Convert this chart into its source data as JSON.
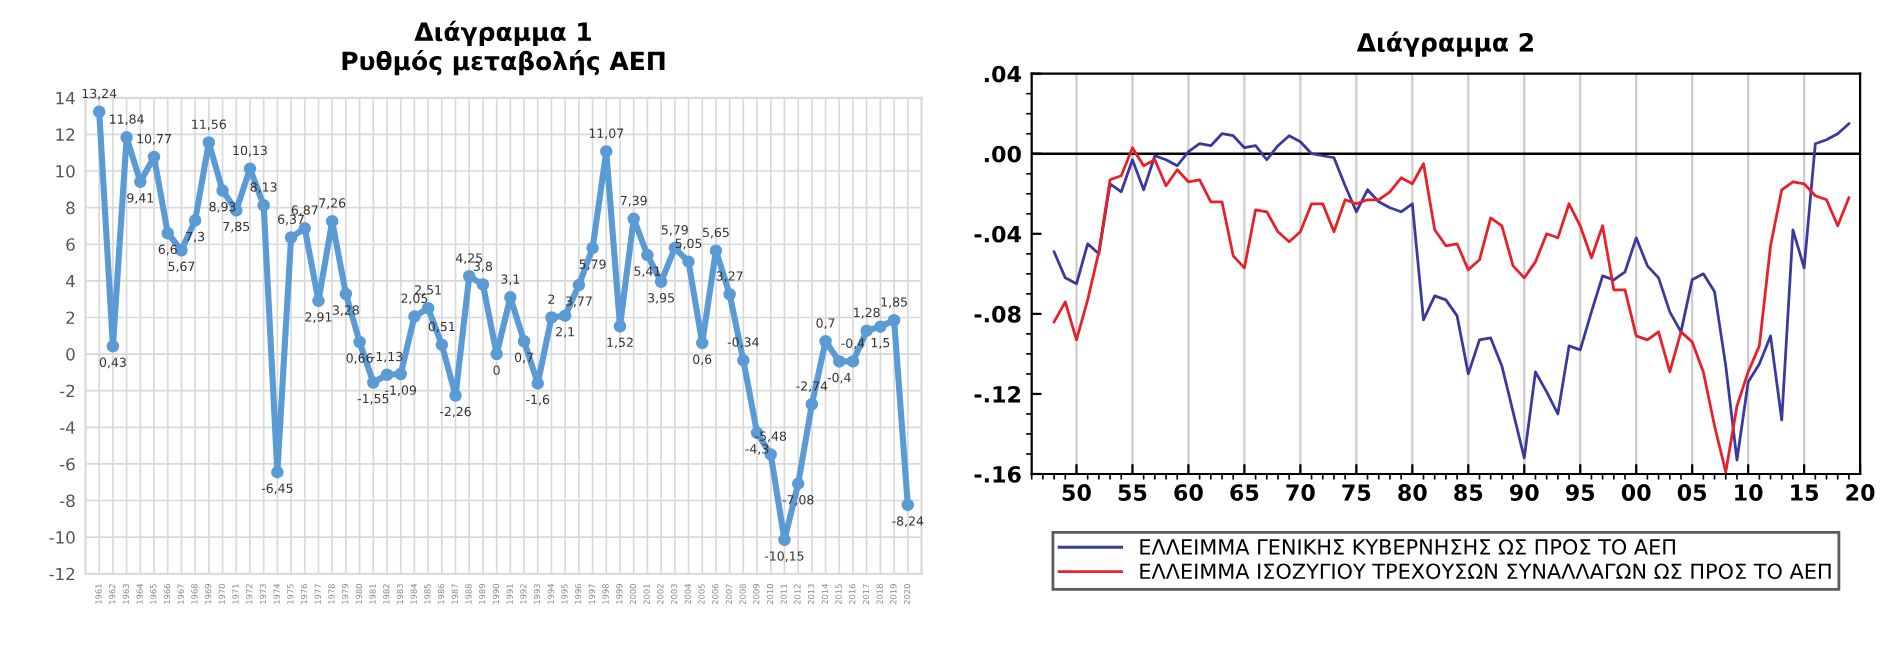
{
  "chart_data": [
    {
      "type": "line",
      "title": "Διάγραμμα 1",
      "subtitle": "Ρυθμός μεταβολής ΑΕΠ",
      "categories": [
        "1961",
        "1962",
        "1963",
        "1964",
        "1965",
        "1966",
        "1967",
        "1968",
        "1969",
        "1970",
        "1971",
        "1972",
        "1973",
        "1974",
        "1975",
        "1976",
        "1977",
        "1978",
        "1979",
        "1980",
        "1981",
        "1982",
        "1983",
        "1984",
        "1985",
        "1986",
        "1987",
        "1988",
        "1989",
        "1990",
        "1991",
        "1992",
        "1993",
        "1994",
        "1995",
        "1996",
        "1997",
        "1998",
        "1999",
        "2000",
        "2001",
        "2002",
        "2003",
        "2004",
        "2005",
        "2006",
        "2007",
        "2008",
        "2009",
        "2010",
        "2011",
        "2012",
        "2013",
        "2014",
        "2015",
        "2016",
        "2017",
        "2018",
        "2019",
        "2020"
      ],
      "series": [
        {
          "color": "#5b9bd5",
          "values": [
            13.24,
            0.43,
            11.84,
            9.41,
            10.77,
            6.6,
            5.67,
            7.3,
            11.56,
            8.93,
            7.85,
            10.13,
            8.13,
            -6.45,
            6.37,
            6.87,
            2.91,
            7.26,
            3.28,
            0.66,
            -1.55,
            -1.13,
            -1.09,
            2.05,
            2.51,
            0.51,
            -2.26,
            4.25,
            3.8,
            0,
            3.1,
            0.7,
            -1.6,
            2,
            2.1,
            3.77,
            5.79,
            11.07,
            1.52,
            7.39,
            5.41,
            3.95,
            5.79,
            5.05,
            0.6,
            5.65,
            3.27,
            -0.34,
            -4.3,
            -5.48,
            -10.15,
            -7.08,
            -2.74,
            0.7,
            -0.4,
            -0.4,
            1.28,
            1.5,
            1.85,
            -8.24
          ],
          "value_labels": [
            "13,24",
            "0,43",
            "11,84",
            "9,41",
            "10,77",
            "6,6",
            "5,67",
            "7,3",
            "11,56",
            "8,93",
            "7,85",
            "10,13",
            "8,13",
            "-6,45",
            "6,37",
            "6,87",
            "2,91",
            "7,26",
            "3,28",
            "0,66",
            "-1,55",
            "-1,13",
            "-1,09",
            "2,05",
            "2,51",
            "0,51",
            "-2,26",
            "4,25",
            "3,8",
            "0",
            "3,1",
            "0,7",
            "-1,6",
            "2",
            "2,1",
            "3,77",
            "5,79",
            "11,07",
            "1,52",
            "7,39",
            "5,41",
            "3,95",
            "5,79",
            "5,05",
            "0,6",
            "5,65",
            "3,27",
            "-0,34",
            "-4,3",
            "-5,48",
            "-10,15",
            "-7,08",
            "-2,74",
            "0,7",
            "-0,4",
            "-0,4",
            "1,28",
            "1,5",
            "1,85",
            "-8,24"
          ]
        }
      ],
      "ylim": [
        -12,
        14
      ],
      "yticks": [
        -12,
        -10,
        -8,
        -6,
        -4,
        -2,
        0,
        2,
        4,
        6,
        8,
        10,
        12,
        14
      ],
      "grid": true,
      "marker": "circle",
      "line_style": "solid",
      "legend": false
    },
    {
      "type": "line",
      "title": "Διάγραμμα 2",
      "x": [
        1948,
        1949,
        1950,
        1951,
        1952,
        1953,
        1954,
        1955,
        1956,
        1957,
        1958,
        1959,
        1960,
        1961,
        1962,
        1963,
        1964,
        1965,
        1966,
        1967,
        1968,
        1969,
        1970,
        1971,
        1972,
        1973,
        1974,
        1975,
        1976,
        1977,
        1978,
        1979,
        1980,
        1981,
        1982,
        1983,
        1984,
        1985,
        1986,
        1987,
        1988,
        1989,
        1990,
        1991,
        1992,
        1993,
        1994,
        1995,
        1996,
        1997,
        1998,
        1999,
        2000,
        2001,
        2002,
        2003,
        2004,
        2005,
        2006,
        2007,
        2008,
        2009,
        2010,
        2011,
        2012,
        2013,
        2014,
        2015,
        2016,
        2017,
        2018,
        2019
      ],
      "series": [
        {
          "name": "ΕΛΛΕΙΜΜΑ ΓΕΝΙΚΗΣ ΚΥΒΕΡΝΗΣΗΣ ΩΣ ΠΡΟΣ ΤΟ ΑΕΠ",
          "color": "#3a3a9e",
          "values": [
            -0.049,
            -0.062,
            -0.065,
            -0.045,
            -0.05,
            -0.015,
            -0.019,
            -0.003,
            -0.018,
            -0.001,
            -0.003,
            -0.006,
            0.001,
            0.005,
            0.004,
            0.01,
            0.009,
            0.003,
            0.004,
            -0.003,
            0.004,
            0.009,
            0.006,
            0.0,
            -0.001,
            -0.002,
            -0.016,
            -0.029,
            -0.018,
            -0.024,
            -0.027,
            -0.029,
            -0.025,
            -0.083,
            -0.071,
            -0.073,
            -0.081,
            -0.11,
            -0.093,
            -0.092,
            -0.106,
            -0.129,
            -0.152,
            -0.109,
            -0.119,
            -0.13,
            -0.096,
            -0.098,
            -0.079,
            -0.061,
            -0.063,
            -0.059,
            -0.042,
            -0.056,
            -0.062,
            -0.079,
            -0.089,
            -0.063,
            -0.06,
            -0.069,
            -0.106,
            -0.153,
            -0.114,
            -0.105,
            -0.091,
            -0.133,
            -0.038,
            -0.057,
            0.005,
            0.007,
            0.01,
            0.015
          ]
        },
        {
          "name": "ΕΛΛΕΙΜΜΑ ΙΣΟΖΥΓΙΟΥ ΤΡΕΧΟΥΣΩΝ ΣΥΝΑΛΛΑΓΩΝ ΩΣ ΠΡΟΣ ΤΟ ΑΕΠ",
          "color": "#e8202a",
          "values": [
            -0.084,
            -0.074,
            -0.093,
            -0.073,
            -0.049,
            -0.013,
            -0.011,
            0.003,
            -0.006,
            -0.003,
            -0.016,
            -0.008,
            -0.014,
            -0.013,
            -0.024,
            -0.024,
            -0.051,
            -0.057,
            -0.028,
            -0.029,
            -0.039,
            -0.044,
            -0.039,
            -0.025,
            -0.025,
            -0.039,
            -0.023,
            -0.025,
            -0.023,
            -0.023,
            -0.019,
            -0.012,
            -0.015,
            -0.005,
            -0.038,
            -0.046,
            -0.045,
            -0.058,
            -0.053,
            -0.032,
            -0.036,
            -0.056,
            -0.062,
            -0.054,
            -0.04,
            -0.042,
            -0.025,
            -0.036,
            -0.052,
            -0.036,
            -0.068,
            -0.068,
            -0.091,
            -0.093,
            -0.089,
            -0.109,
            -0.089,
            -0.094,
            -0.109,
            -0.136,
            -0.159,
            -0.126,
            -0.109,
            -0.096,
            -0.046,
            -0.018,
            -0.014,
            -0.015,
            -0.021,
            -0.023,
            -0.036,
            -0.022
          ]
        }
      ],
      "xlim": [
        1946,
        2020
      ],
      "xticks": [
        {
          "value": 1950,
          "label": "50"
        },
        {
          "value": 1955,
          "label": "55"
        },
        {
          "value": 1960,
          "label": "60"
        },
        {
          "value": 1965,
          "label": "65"
        },
        {
          "value": 1970,
          "label": "70"
        },
        {
          "value": 1975,
          "label": "75"
        },
        {
          "value": 1980,
          "label": "80"
        },
        {
          "value": 1985,
          "label": "85"
        },
        {
          "value": 1990,
          "label": "90"
        },
        {
          "value": 1995,
          "label": "95"
        },
        {
          "value": 2000,
          "label": "00"
        },
        {
          "value": 2005,
          "label": "05"
        },
        {
          "value": 2010,
          "label": "10"
        },
        {
          "value": 2015,
          "label": "15"
        },
        {
          "value": 2020,
          "label": "20"
        }
      ],
      "ylim": [
        -0.16,
        0.04
      ],
      "yticks": [
        {
          "value": -0.16,
          "label": "-.16"
        },
        {
          "value": -0.12,
          "label": "-.12"
        },
        {
          "value": -0.08,
          "label": "-.08"
        },
        {
          "value": -0.04,
          "label": "-.04"
        },
        {
          "value": 0,
          "label": ".00"
        },
        {
          "value": 0.04,
          "label": ".04"
        }
      ],
      "ref_lines": [
        {
          "axis": "y",
          "value": 0,
          "color": "#000000"
        }
      ],
      "grid": "x",
      "legend": "bottom",
      "line_style": "solid",
      "marker": "none"
    }
  ]
}
